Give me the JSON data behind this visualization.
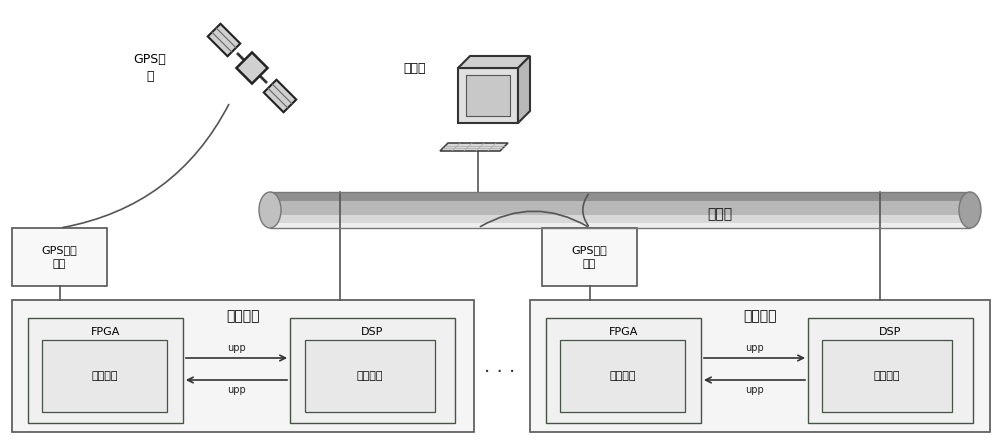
{
  "bg_color": "#ffffff",
  "fig_width": 10.0,
  "fig_height": 4.42,
  "dpi": 100,
  "ethernet_label": "以太网",
  "computer_label": "上位机",
  "gps_sat_label": "GPS卫\n星",
  "gps_box1_label": "GPS接收\n模块",
  "gps_box2_label": "GPS接收\n模块",
  "measure_box1_label": "测量装置",
  "measure_box2_label": "测量装置",
  "fpga_label": "FPGA",
  "dsp_label": "DSP",
  "data_sample_label": "数据采样",
  "data_calc_label": "数据计算",
  "upp_label": "upp",
  "dots_label": "· · ·",
  "line_color": "#444444",
  "text_color": "#000000",
  "box_edge_color": "#555555",
  "box_face_color": "#f5f5f5",
  "inner_box_face_color": "#e8e8e8",
  "font_size": 9,
  "font_size_small": 8
}
